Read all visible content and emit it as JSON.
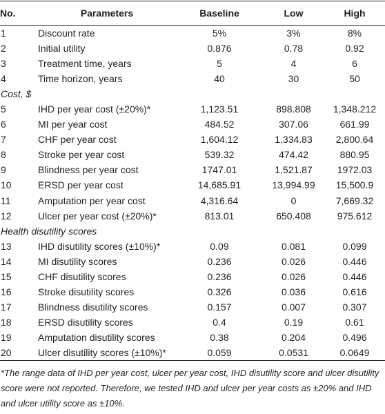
{
  "table": {
    "header": [
      "No.",
      "Parameters",
      "Baseline",
      "Low",
      "High"
    ],
    "body": [
      [
        "1",
        "Discount rate",
        "5%",
        "3%",
        "8%"
      ],
      [
        "2",
        "Initial utility",
        "0.876",
        "0.78",
        "0.92"
      ],
      [
        "3",
        "Treatment time, years",
        "5",
        "4",
        "6"
      ],
      [
        "4",
        "Time horizon, years",
        "40",
        "30",
        "50"
      ],
      {
        "section": "Cost, $"
      },
      [
        "5",
        "IHD per year cost (±20%)*",
        "1,123.51",
        "898.808",
        "1,348.212"
      ],
      [
        "6",
        "MI per year cost",
        "484.52",
        "307.06",
        "661.99"
      ],
      [
        "7",
        "CHF per year cost",
        "1,604.12",
        "1,334.83",
        "2,800.64"
      ],
      [
        "8",
        "Stroke per year cost",
        "539.32",
        "474.42",
        "880.95"
      ],
      [
        "9",
        "Blindness per year cost",
        "1747.01",
        "1,521.87",
        "1972.03"
      ],
      [
        "10",
        "ERSD per year cost",
        "14,685.91",
        "13,994.99",
        "15,500.9"
      ],
      [
        "11",
        "Amputation per year cost",
        "4,316.64",
        "0",
        "7,669.32"
      ],
      [
        "12",
        "Ulcer per year cost (±20%)*",
        "813.01",
        "650.408",
        "975.612"
      ],
      {
        "section": "Health disutility scores"
      },
      [
        "13",
        "IHD disutility scores (±10%)*",
        "0.09",
        "0.081",
        "0.099"
      ],
      [
        "14",
        "MI disutility scores",
        "0.236",
        "0.026",
        "0.446"
      ],
      [
        "15",
        "CHF disutility scores",
        "0.236",
        "0.026",
        "0.446"
      ],
      [
        "16",
        "Stroke disutility scores",
        "0.326",
        "0.036",
        "0.616"
      ],
      [
        "17",
        "Blindness disutility scores",
        "0.157",
        "0.007",
        "0.307"
      ],
      [
        "18",
        "ERSD disutility scores",
        "0.4",
        "0.19",
        "0.61"
      ],
      [
        "19",
        "Amputation disutility scores",
        "0.38",
        "0.204",
        "0.496"
      ],
      [
        "20",
        "Ulcer disutility scores (±10%)*",
        "0.059",
        "0.0531",
        "0.0649"
      ]
    ],
    "footnote": "*The range data of IHD per year cost, ulcer per year cost, IHD disutility score and ulcer disutility score were not reported. Therefore, we tested IHD and ulcer per year costs as ±20% and IHD and ulcer utility score as ±10%."
  }
}
